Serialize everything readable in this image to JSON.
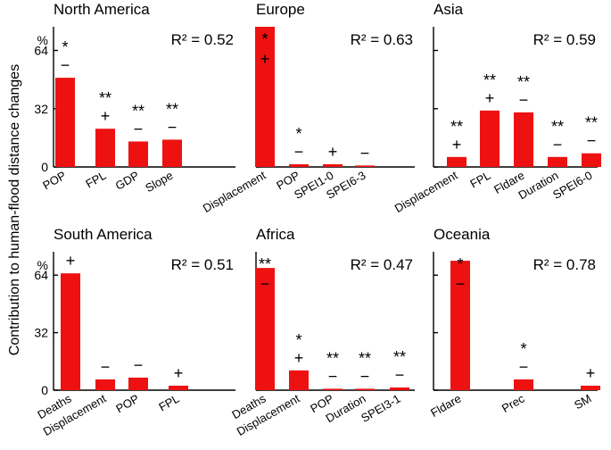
{
  "figure": {
    "ylabel": "Contribution to human-flood distance changes",
    "percent_label": "%",
    "bar_color": "#ee1111",
    "y_ticks": [
      "0",
      "32",
      "64"
    ]
  },
  "chart_data": [
    {
      "type": "bar",
      "title": "North America",
      "r2": "R² = 0.52",
      "ylim": [
        0,
        77
      ],
      "show_pct": true,
      "categories": [
        "POP",
        "FPL",
        "GDP",
        "Slope"
      ],
      "values": [
        49,
        21,
        14,
        15
      ],
      "signs": [
        "−",
        "+",
        "−",
        "−"
      ],
      "stars": [
        "*",
        "**",
        "**",
        "**"
      ]
    },
    {
      "type": "bar",
      "title": "Europe",
      "r2": "R² = 0.63",
      "ylim": [
        0,
        77
      ],
      "show_pct": false,
      "categories": [
        "Displacement",
        "POP",
        "SPEI1-0",
        "SPEI6-3"
      ],
      "values": [
        77,
        1.5,
        1.5,
        0.8
      ],
      "signs": [
        "+",
        "−",
        "+",
        "−"
      ],
      "stars": [
        "*",
        "*",
        "",
        ""
      ]
    },
    {
      "type": "bar",
      "title": "Asia",
      "r2": "R² = 0.59",
      "ylim": [
        0,
        77
      ],
      "show_pct": false,
      "categories": [
        "Displacement",
        "FPL",
        "Fldare",
        "Duration",
        "SPEI6-0"
      ],
      "values": [
        5.5,
        31,
        30,
        5.5,
        7.5
      ],
      "signs": [
        "+",
        "+",
        "−",
        "−",
        "−"
      ],
      "stars": [
        "**",
        "**",
        "**",
        "**",
        "**"
      ]
    },
    {
      "type": "bar",
      "title": "South America",
      "r2": "R² = 0.51",
      "ylim": [
        0,
        77
      ],
      "show_pct": true,
      "categories": [
        "Deaths",
        "Displacement",
        "POP",
        "FPL"
      ],
      "values": [
        65,
        6,
        7,
        2.5
      ],
      "signs": [
        "+",
        "−",
        "−",
        "+"
      ],
      "stars": [
        "",
        "",
        "",
        ""
      ]
    },
    {
      "type": "bar",
      "title": "Africa",
      "r2": "R² = 0.47",
      "ylim": [
        0,
        77
      ],
      "show_pct": false,
      "categories": [
        "Deaths",
        "Displacement",
        "POP",
        "Duration",
        "SPEI3-1"
      ],
      "values": [
        68,
        11,
        0.8,
        0.8,
        1.5
      ],
      "signs": [
        "−",
        "+",
        "−",
        "−",
        "−"
      ],
      "stars": [
        "**",
        "*",
        "**",
        "**",
        "**"
      ]
    },
    {
      "type": "bar",
      "title": "Oceania",
      "r2": "R² = 0.78",
      "ylim": [
        0,
        77
      ],
      "show_pct": false,
      "categories": [
        "Fldare",
        "Prec",
        "SM"
      ],
      "values": [
        72,
        6,
        2.5
      ],
      "signs": [
        "−",
        "−",
        "+"
      ],
      "stars": [
        "*",
        "*",
        ""
      ]
    }
  ]
}
